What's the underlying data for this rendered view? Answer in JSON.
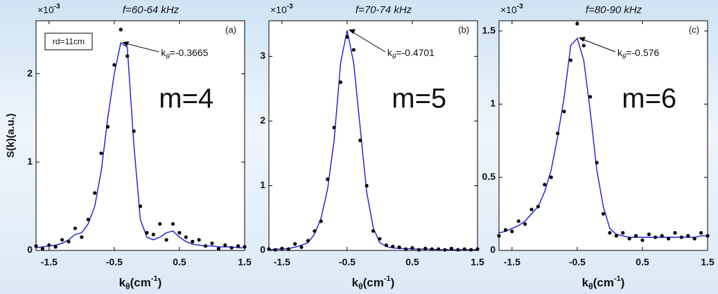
{
  "chart_data": [
    {
      "type": "line",
      "title": "f=60-64 kHz",
      "panel": "(a)",
      "box_label": "rd=11cm",
      "mode_label": "m=4",
      "scale": {
        "base": "×10",
        "exp": "-3"
      },
      "annotation": {
        "base": "k",
        "sub": "θ",
        "text": "=-0.3665"
      },
      "ylabel": "S(k)(a.u.)",
      "xlabel": {
        "base": "k",
        "sub": "θ",
        "unit": "(cm",
        "exp": "-1",
        "end": ")"
      },
      "x": [
        -1.7,
        -1.6,
        -1.5,
        -1.4,
        -1.3,
        -1.2,
        -1.1,
        -1.0,
        -0.9,
        -0.8,
        -0.7,
        -0.6,
        -0.5,
        -0.4,
        -0.3,
        -0.2,
        -0.1,
        0,
        0.1,
        0.2,
        0.3,
        0.4,
        0.5,
        0.6,
        0.7,
        0.8,
        0.9,
        1.0,
        1.1,
        1.2,
        1.3,
        1.4,
        1.5
      ],
      "series": [
        {
          "color": "#1a1ad6",
          "style": "line",
          "values": [
            0.03,
            0.04,
            0.05,
            0.06,
            0.08,
            0.12,
            0.18,
            0.2,
            0.3,
            0.5,
            0.9,
            1.5,
            2.0,
            2.35,
            2.3,
            1.2,
            0.35,
            0.15,
            0.12,
            0.15,
            0.2,
            0.22,
            0.15,
            0.1,
            0.07,
            0.06,
            0.05,
            0.05,
            0.04,
            0.04,
            0.04,
            0.03,
            0.03
          ]
        },
        {
          "color": "#000000",
          "style": "dots",
          "values": [
            0.05,
            0.02,
            0.06,
            0.04,
            0.12,
            0.1,
            0.25,
            0.15,
            0.35,
            0.65,
            1.1,
            1.4,
            2.1,
            2.5,
            2.2,
            1.35,
            0.5,
            0.2,
            0.18,
            0.3,
            0.12,
            0.3,
            0.2,
            0.15,
            0.1,
            0.12,
            0.05,
            0.08,
            0.02,
            0.06,
            0.03,
            0.05,
            0.04
          ]
        }
      ],
      "xlim": [
        -1.7,
        1.5
      ],
      "xticks": [
        -1.5,
        -0.5,
        0.5,
        1.5
      ],
      "ylim": [
        0,
        2.6
      ],
      "yticks": [
        0,
        1,
        2
      ]
    },
    {
      "type": "line",
      "title": "f=70-74 kHz",
      "panel": "(b)",
      "mode_label": "m=5",
      "scale": {
        "base": "×10",
        "exp": "-3"
      },
      "annotation": {
        "base": "k",
        "sub": "θ",
        "text": "=-0.4701"
      },
      "xlabel": {
        "base": "k",
        "sub": "θ",
        "unit": "(cm",
        "exp": "-1",
        "end": ")"
      },
      "x": [
        -1.7,
        -1.6,
        -1.5,
        -1.4,
        -1.3,
        -1.2,
        -1.1,
        -1.0,
        -0.9,
        -0.8,
        -0.7,
        -0.6,
        -0.5,
        -0.4,
        -0.3,
        -0.2,
        -0.1,
        0,
        0.1,
        0.2,
        0.3,
        0.4,
        0.5,
        0.6,
        0.7,
        0.8,
        0.9,
        1.0,
        1.1,
        1.2,
        1.3,
        1.4,
        1.5
      ],
      "series": [
        {
          "color": "#1a1ad6",
          "style": "line",
          "values": [
            0.01,
            0.02,
            0.02,
            0.03,
            0.05,
            0.08,
            0.12,
            0.25,
            0.5,
            0.95,
            1.7,
            2.9,
            3.4,
            2.9,
            1.9,
            0.9,
            0.35,
            0.12,
            0.06,
            0.04,
            0.03,
            0.03,
            0.02,
            0.02,
            0.02,
            0.02,
            0.01,
            0.01,
            0.01,
            0.01,
            0.01,
            0.01,
            0.01
          ]
        },
        {
          "color": "#000000",
          "style": "dots",
          "values": [
            0.02,
            0.01,
            0.03,
            0.02,
            0.1,
            0.05,
            0.15,
            0.3,
            0.45,
            1.1,
            1.9,
            2.6,
            3.3,
            3.1,
            1.7,
            1.0,
            0.3,
            0.18,
            0.08,
            0.06,
            0.05,
            0.02,
            0.04,
            0.01,
            0.03,
            0.02,
            0.02,
            0.01,
            0.03,
            0.01,
            0.02,
            0.01,
            0.02
          ]
        }
      ],
      "xlim": [
        -1.7,
        1.5
      ],
      "xticks": [
        -1.5,
        -0.5,
        0.5,
        1.5
      ],
      "ylim": [
        0,
        3.55
      ],
      "yticks": [
        0,
        1,
        2,
        3
      ]
    },
    {
      "type": "line",
      "title": "f=80-90 kHz",
      "panel": "(c)",
      "mode_label": "m=6",
      "scale": {
        "base": "×10",
        "exp": "-3"
      },
      "annotation": {
        "base": "k",
        "sub": "θ",
        "text": "=-0.576"
      },
      "xlabel": {
        "base": "k",
        "sub": "θ",
        "unit": "(cm",
        "exp": "-1",
        "end": ")"
      },
      "x": [
        -1.7,
        -1.6,
        -1.5,
        -1.4,
        -1.3,
        -1.2,
        -1.1,
        -1.0,
        -0.9,
        -0.8,
        -0.7,
        -0.6,
        -0.5,
        -0.4,
        -0.3,
        -0.2,
        -0.1,
        0,
        0.1,
        0.2,
        0.3,
        0.4,
        0.5,
        0.6,
        0.7,
        0.8,
        0.9,
        1.0,
        1.1,
        1.2,
        1.3,
        1.4,
        1.5
      ],
      "series": [
        {
          "color": "#1a1ad6",
          "style": "line",
          "values": [
            0.12,
            0.13,
            0.15,
            0.17,
            0.2,
            0.25,
            0.3,
            0.4,
            0.55,
            0.78,
            1.05,
            1.4,
            1.45,
            1.3,
            0.95,
            0.55,
            0.3,
            0.15,
            0.11,
            0.1,
            0.09,
            0.09,
            0.09,
            0.09,
            0.09,
            0.09,
            0.09,
            0.09,
            0.09,
            0.09,
            0.09,
            0.1,
            0.1
          ]
        },
        {
          "color": "#000000",
          "style": "dots",
          "values": [
            0.1,
            0.14,
            0.13,
            0.2,
            0.18,
            0.28,
            0.3,
            0.45,
            0.5,
            0.8,
            0.95,
            1.3,
            1.55,
            1.4,
            1.05,
            0.6,
            0.25,
            0.12,
            0.1,
            0.12,
            0.08,
            0.1,
            0.07,
            0.11,
            0.09,
            0.1,
            0.08,
            0.12,
            0.09,
            0.1,
            0.08,
            0.12,
            0.1
          ]
        }
      ],
      "xlim": [
        -1.7,
        1.5
      ],
      "xticks": [
        -1.5,
        -0.5,
        0.5,
        1.5
      ],
      "ylim": [
        0,
        1.57
      ],
      "yticks": [
        0,
        0.5,
        1,
        1.5
      ]
    }
  ]
}
